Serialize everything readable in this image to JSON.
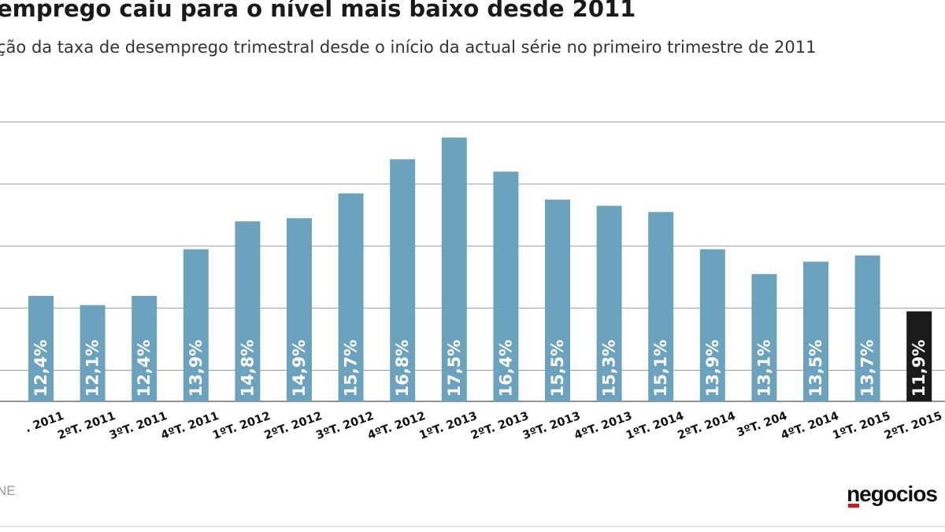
{
  "header": {
    "title": "emprego caiu para o nível mais baixo desde 2011",
    "subtitle": "ção da taxa de desemprego trimestral desde o início da actual série no primeiro trimestre de 2011"
  },
  "footer": {
    "source": "NE",
    "logo": "negocios"
  },
  "colors": {
    "bar": "#6ba3bf",
    "highlight": "#1a1a1a",
    "grid": "#9a9a9a",
    "value_label": "#ffffff",
    "logo_accent": "#d7141a"
  },
  "chart_data": {
    "type": "bar",
    "title": "emprego caiu para o nível mais baixo desde 2011",
    "categories": [
      ". 2011",
      "2ºT. 2011",
      "3ºT. 2011",
      "4ºT. 2011",
      "1ºT. 2012",
      "2ºT. 2012",
      "3ºT. 2012",
      "4ºT. 2012",
      "1ºT. 2013",
      "2ºT. 2013",
      "3ºT. 2013",
      "4ºT. 2013",
      "1ºT. 2014",
      "2ºT. 2014",
      "3ºT. 204",
      "4ºT. 2014",
      "1ºT. 2015",
      "2ºT. 2015"
    ],
    "values": [
      12.4,
      12.1,
      12.4,
      13.9,
      14.8,
      14.9,
      15.7,
      16.8,
      17.5,
      16.4,
      15.5,
      15.3,
      15.1,
      13.9,
      13.1,
      13.5,
      13.7,
      11.9
    ],
    "value_labels": [
      "12,4%",
      "12,1%",
      "12,4%",
      "13,9%",
      "14,8%",
      "14,9%",
      "15,7%",
      "16,8%",
      "17,5%",
      "16,4%",
      "15,5%",
      "15,3%",
      "15,1%",
      "13,9%",
      "13,1%",
      "13,5%",
      "13,7%",
      "11,9%"
    ],
    "highlight_index": 17,
    "ylim": [
      9,
      18
    ],
    "grid_values": [
      10,
      12,
      14,
      16,
      18
    ],
    "grid": true,
    "xlabel": "",
    "ylabel": ""
  }
}
